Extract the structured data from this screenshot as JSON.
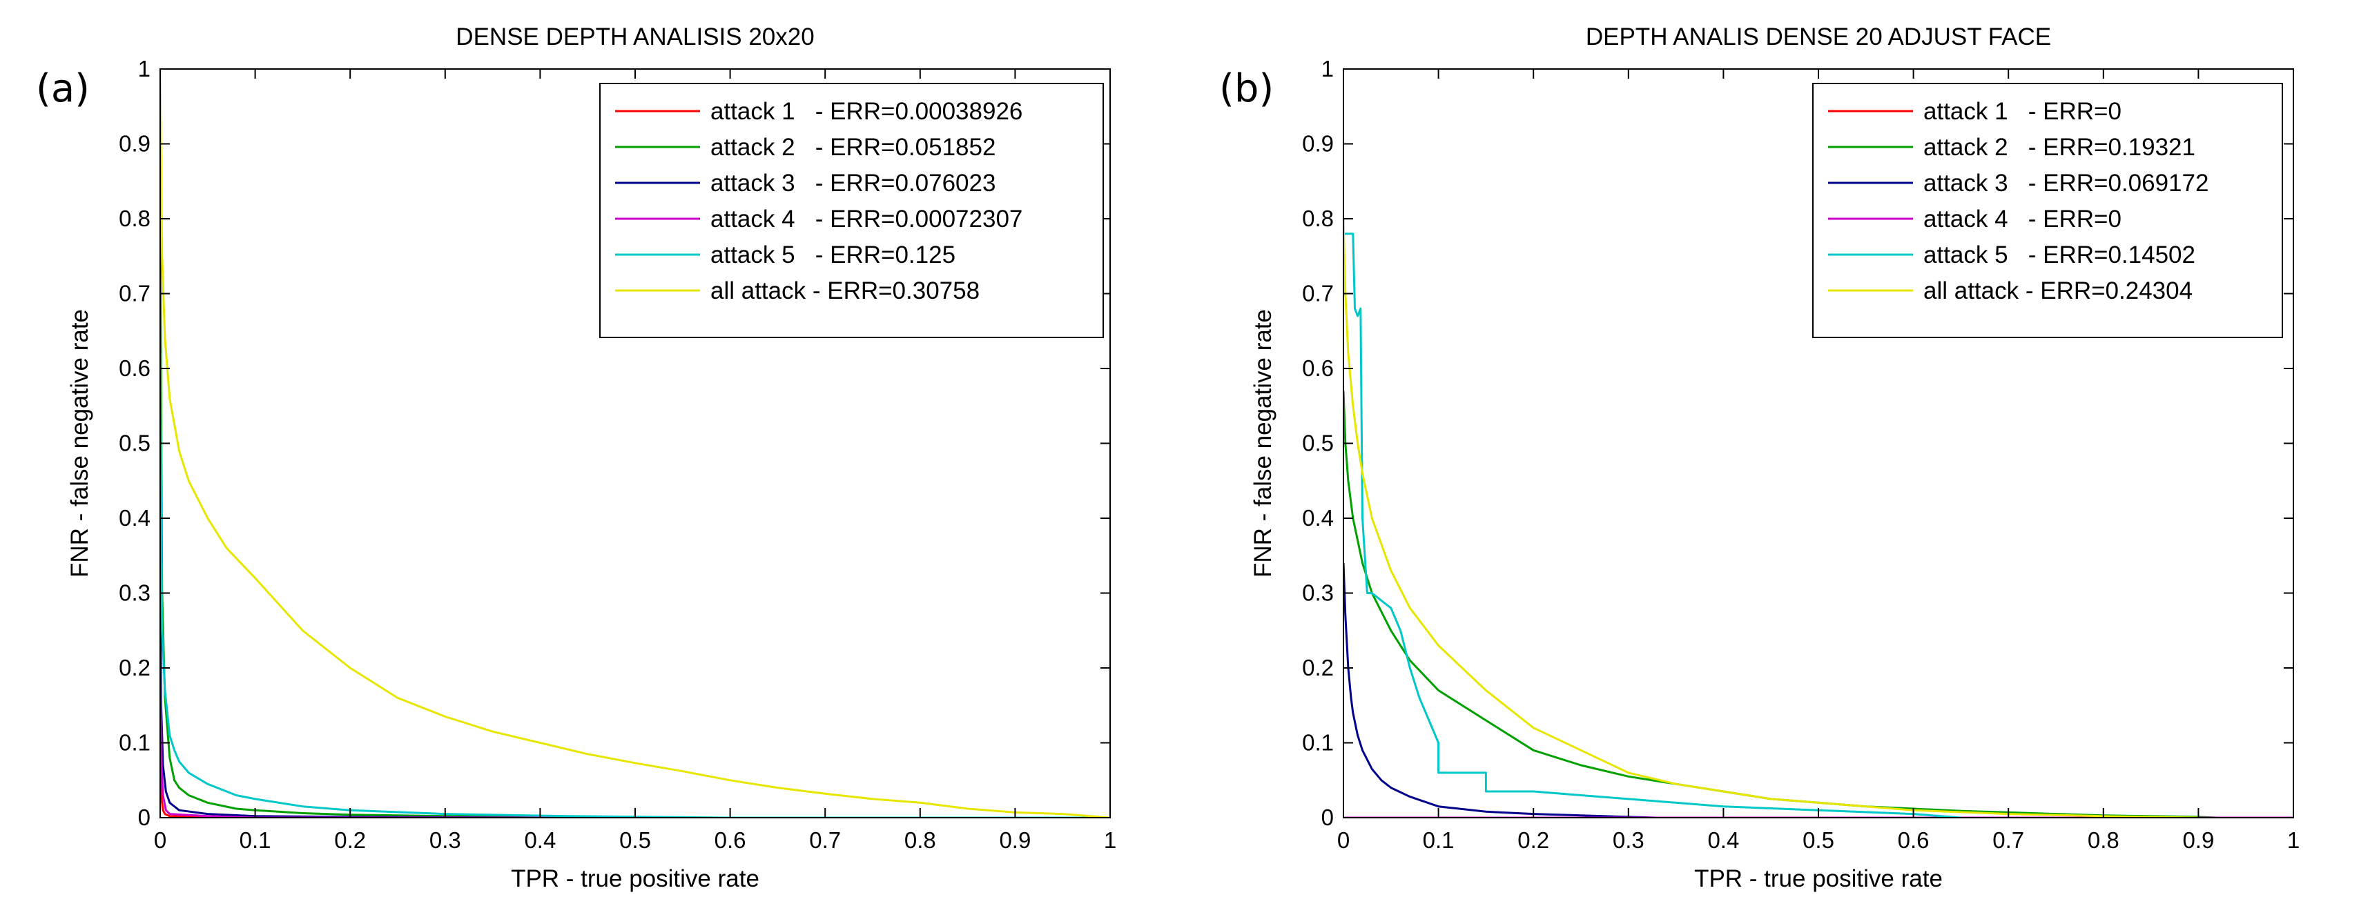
{
  "chart_data": [
    {
      "type": "line",
      "panel_label": "(a)",
      "title": "DENSE DEPTH ANALISIS 20x20",
      "xlabel": "TPR - true positive rate",
      "ylabel": "FNR - false negative rate",
      "xlim": [
        0,
        1
      ],
      "ylim": [
        0,
        1
      ],
      "xticks": [
        0,
        0.1,
        0.2,
        0.3,
        0.4,
        0.5,
        0.6,
        0.7,
        0.8,
        0.9,
        1
      ],
      "yticks": [
        0,
        0.1,
        0.2,
        0.3,
        0.4,
        0.5,
        0.6,
        0.7,
        0.8,
        0.9,
        1
      ],
      "xtick_labels": [
        "0",
        "0.1",
        "0.2",
        "0.3",
        "0.4",
        "0.5",
        "0.6",
        "0.7",
        "0.8",
        "0.9",
        "1"
      ],
      "ytick_labels": [
        "0",
        "0.1",
        "0.2",
        "0.3",
        "0.4",
        "0.5",
        "0.6",
        "0.7",
        "0.8",
        "0.9",
        "1"
      ],
      "grid": false,
      "legend_position": "top-right",
      "series": [
        {
          "name": "attack 1   - ERR=0.00038926",
          "color": "#ff0000",
          "x": [
            0,
            0,
            0.001,
            0.003,
            0.005,
            0.01,
            0.05,
            0.1,
            0.2,
            1
          ],
          "y": [
            0.35,
            0.1,
            0.03,
            0.01,
            0.005,
            0.002,
            0.001,
            0.0005,
            0,
            0
          ]
        },
        {
          "name": "attack 2   - ERR=0.051852",
          "color": "#00a000",
          "x": [
            0,
            0.002,
            0.005,
            0.01,
            0.015,
            0.02,
            0.03,
            0.05,
            0.08,
            0.1,
            0.15,
            0.2,
            0.3,
            0.4,
            0.5,
            1
          ],
          "y": [
            0.8,
            0.3,
            0.16,
            0.08,
            0.05,
            0.04,
            0.03,
            0.02,
            0.012,
            0.01,
            0.006,
            0.004,
            0.002,
            0.001,
            0,
            0
          ]
        },
        {
          "name": "attack 3   - ERR=0.076023",
          "color": "#00008b",
          "x": [
            0,
            0.001,
            0.003,
            0.006,
            0.01,
            0.02,
            0.05,
            0.1,
            0.2,
            0.4,
            1
          ],
          "y": [
            0.35,
            0.15,
            0.07,
            0.035,
            0.02,
            0.01,
            0.005,
            0.002,
            0.001,
            0,
            0
          ]
        },
        {
          "name": "attack 4   - ERR=0.00072307",
          "color": "#cc00cc",
          "x": [
            0,
            0.001,
            0.003,
            0.006,
            0.01,
            0.05,
            0.1,
            1
          ],
          "y": [
            0.2,
            0.08,
            0.03,
            0.01,
            0.005,
            0.002,
            0,
            0
          ]
        },
        {
          "name": "attack 5   - ERR=0.125",
          "color": "#00c8c8",
          "x": [
            0,
            0.002,
            0.005,
            0.01,
            0.015,
            0.02,
            0.03,
            0.05,
            0.08,
            0.1,
            0.15,
            0.2,
            0.3,
            0.43,
            0.6,
            1
          ],
          "y": [
            0.62,
            0.25,
            0.17,
            0.11,
            0.09,
            0.075,
            0.06,
            0.045,
            0.03,
            0.025,
            0.015,
            0.01,
            0.005,
            0.002,
            0,
            0
          ]
        },
        {
          "name": "all attack - ERR=0.30758",
          "color": "#e6e600",
          "x": [
            0,
            0.002,
            0.005,
            0.01,
            0.02,
            0.03,
            0.05,
            0.07,
            0.1,
            0.15,
            0.2,
            0.25,
            0.3,
            0.35,
            0.4,
            0.45,
            0.5,
            0.55,
            0.6,
            0.65,
            0.7,
            0.75,
            0.8,
            0.85,
            0.9,
            0.95,
            1
          ],
          "y": [
            1.0,
            0.75,
            0.64,
            0.56,
            0.49,
            0.45,
            0.4,
            0.36,
            0.32,
            0.25,
            0.2,
            0.16,
            0.135,
            0.115,
            0.1,
            0.085,
            0.073,
            0.062,
            0.05,
            0.04,
            0.032,
            0.025,
            0.02,
            0.012,
            0.007,
            0.005,
            0
          ]
        }
      ]
    },
    {
      "type": "line",
      "panel_label": "(b)",
      "title": "DEPTH ANALIS DENSE 20 ADJUST FACE",
      "xlabel": "TPR - true positive rate",
      "ylabel": "FNR - false negative rate",
      "xlim": [
        0,
        1
      ],
      "ylim": [
        0,
        1
      ],
      "xticks": [
        0,
        0.1,
        0.2,
        0.3,
        0.4,
        0.5,
        0.6,
        0.7,
        0.8,
        0.9,
        1
      ],
      "yticks": [
        0,
        0.1,
        0.2,
        0.3,
        0.4,
        0.5,
        0.6,
        0.7,
        0.8,
        0.9,
        1
      ],
      "xtick_labels": [
        "0",
        "0.1",
        "0.2",
        "0.3",
        "0.4",
        "0.5",
        "0.6",
        "0.7",
        "0.8",
        "0.9",
        "1"
      ],
      "ytick_labels": [
        "0",
        "0.1",
        "0.2",
        "0.3",
        "0.4",
        "0.5",
        "0.6",
        "0.7",
        "0.8",
        "0.9",
        "1"
      ],
      "grid": false,
      "legend_position": "top-right",
      "series": [
        {
          "name": "attack 1   - ERR=0",
          "color": "#ff0000",
          "x": [
            0,
            0,
            1
          ],
          "y": [
            0.0,
            0,
            0
          ]
        },
        {
          "name": "attack 2   - ERR=0.19321",
          "color": "#00a000",
          "x": [
            0,
            0.002,
            0.005,
            0.01,
            0.02,
            0.03,
            0.05,
            0.07,
            0.1,
            0.15,
            0.2,
            0.25,
            0.3,
            0.35,
            0.4,
            0.45,
            0.5,
            0.55,
            0.6,
            0.65,
            0.7,
            0.75,
            0.8,
            0.9,
            0.92
          ],
          "y": [
            0.57,
            0.5,
            0.45,
            0.4,
            0.34,
            0.3,
            0.25,
            0.21,
            0.17,
            0.13,
            0.09,
            0.07,
            0.055,
            0.045,
            0.035,
            0.025,
            0.02,
            0.015,
            0.012,
            0.009,
            0.007,
            0.005,
            0.003,
            0.001,
            0
          ]
        },
        {
          "name": "attack 3   - ERR=0.069172",
          "color": "#00008b",
          "x": [
            0,
            0.002,
            0.005,
            0.008,
            0.01,
            0.015,
            0.02,
            0.03,
            0.04,
            0.05,
            0.07,
            0.1,
            0.15,
            0.2,
            0.25,
            0.3,
            0.33
          ],
          "y": [
            0.34,
            0.27,
            0.2,
            0.16,
            0.14,
            0.11,
            0.09,
            0.065,
            0.05,
            0.04,
            0.028,
            0.015,
            0.008,
            0.005,
            0.003,
            0.001,
            0
          ]
        },
        {
          "name": "attack 4   - ERR=0",
          "color": "#cc00cc",
          "x": [
            0,
            0,
            1
          ],
          "y": [
            0.0,
            0,
            0
          ]
        },
        {
          "name": "attack 5   - ERR=0.14502",
          "color": "#00c8c8",
          "x": [
            0,
            0.005,
            0.01,
            0.012,
            0.015,
            0.018,
            0.02,
            0.025,
            0.03,
            0.04,
            0.05,
            0.06,
            0.07,
            0.08,
            0.1,
            0.1,
            0.15,
            0.15,
            0.2,
            0.25,
            0.3,
            0.4,
            0.5,
            0.6,
            0.65
          ],
          "y": [
            0.78,
            0.78,
            0.78,
            0.68,
            0.67,
            0.68,
            0.4,
            0.3,
            0.3,
            0.29,
            0.28,
            0.25,
            0.2,
            0.16,
            0.1,
            0.06,
            0.06,
            0.035,
            0.035,
            0.03,
            0.025,
            0.015,
            0.01,
            0.005,
            0
          ]
        },
        {
          "name": "all attack - ERR=0.24304",
          "color": "#e6e600",
          "x": [
            0,
            0.002,
            0.005,
            0.01,
            0.015,
            0.02,
            0.03,
            0.05,
            0.07,
            0.1,
            0.15,
            0.2,
            0.25,
            0.3,
            0.35,
            0.4,
            0.45,
            0.5,
            0.55,
            0.6,
            0.7,
            0.8,
            0.9
          ],
          "y": [
            0.8,
            0.7,
            0.62,
            0.55,
            0.5,
            0.46,
            0.4,
            0.33,
            0.28,
            0.23,
            0.17,
            0.12,
            0.09,
            0.06,
            0.045,
            0.035,
            0.025,
            0.02,
            0.015,
            0.01,
            0.005,
            0.002,
            0
          ]
        }
      ]
    }
  ]
}
